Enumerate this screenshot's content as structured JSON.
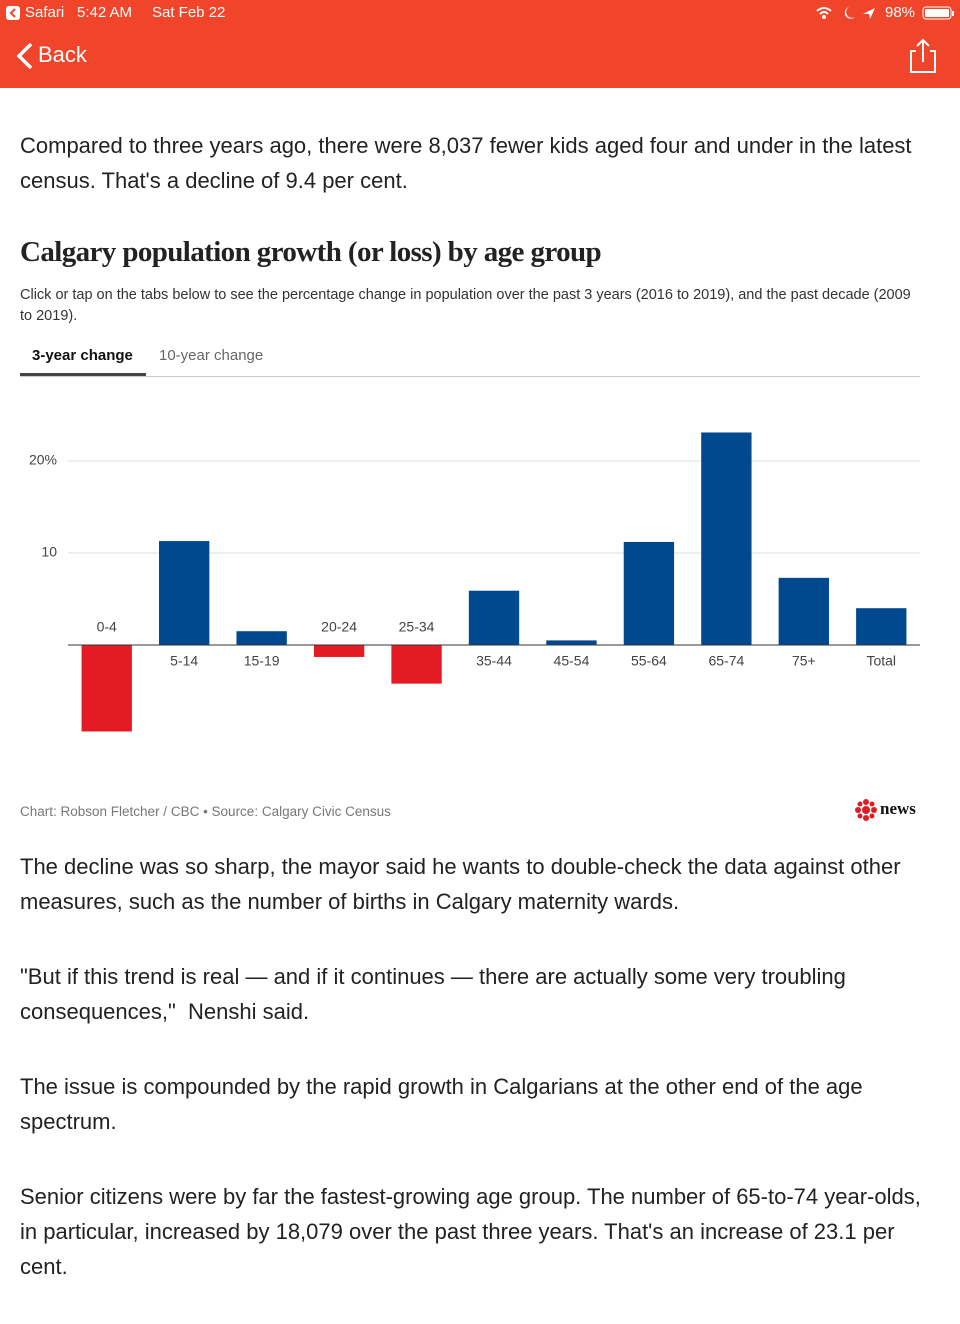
{
  "status_bar": {
    "app": "Safari",
    "time": "5:42 AM",
    "date": "Sat Feb 22",
    "battery": "98%"
  },
  "nav": {
    "back": "Back"
  },
  "intro": "Compared to three years ago, there were 8,037 fewer kids aged four and under in the latest census. That's a decline of 9.4 per cent.",
  "chart_data": {
    "type": "bar",
    "title": "Calgary population growth (or loss) by age group",
    "subtitle": "Click or tap on the tabs below to see the percentage change in population over the past 3 years (2016 to 2019), and the past decade (2009 to 2019).",
    "tabs": [
      "3-year change",
      "10-year change"
    ],
    "categories": [
      "0-4",
      "5-14",
      "15-19",
      "20-24",
      "25-34",
      "35-44",
      "45-54",
      "55-64",
      "65-74",
      "75+",
      "Total"
    ],
    "values": [
      -9.4,
      11.3,
      1.5,
      -1.3,
      -4.2,
      5.9,
      0.5,
      11.2,
      23.1,
      7.3,
      4.0
    ],
    "color": "#00498f",
    "negative_color": "#e31b23",
    "ylim": [
      -12,
      25
    ],
    "yticks": [
      {
        "value": 20,
        "label": "20%"
      },
      10
    ],
    "grid": true,
    "source": "Chart: Robson Fletcher / CBC • Source: Calgary Civic Census",
    "logo": "news"
  },
  "paragraphs": [
    "The decline was so sharp, the mayor said he wants to double-check the data against other measures, such as the number of births in Calgary maternity wards.",
    "\"But if this trend is real — and if it continues — there are actually some very troubling consequences,\"  Nenshi said.",
    "The issue is compounded by the rapid growth in Calgarians at the other end of the age spectrum.",
    "Senior citizens were by far the fastest-growing age group. The number of 65-to-74 year-olds, in particular, increased by 18,079 over the past three years. That's an increase of 23.1 per cent."
  ]
}
